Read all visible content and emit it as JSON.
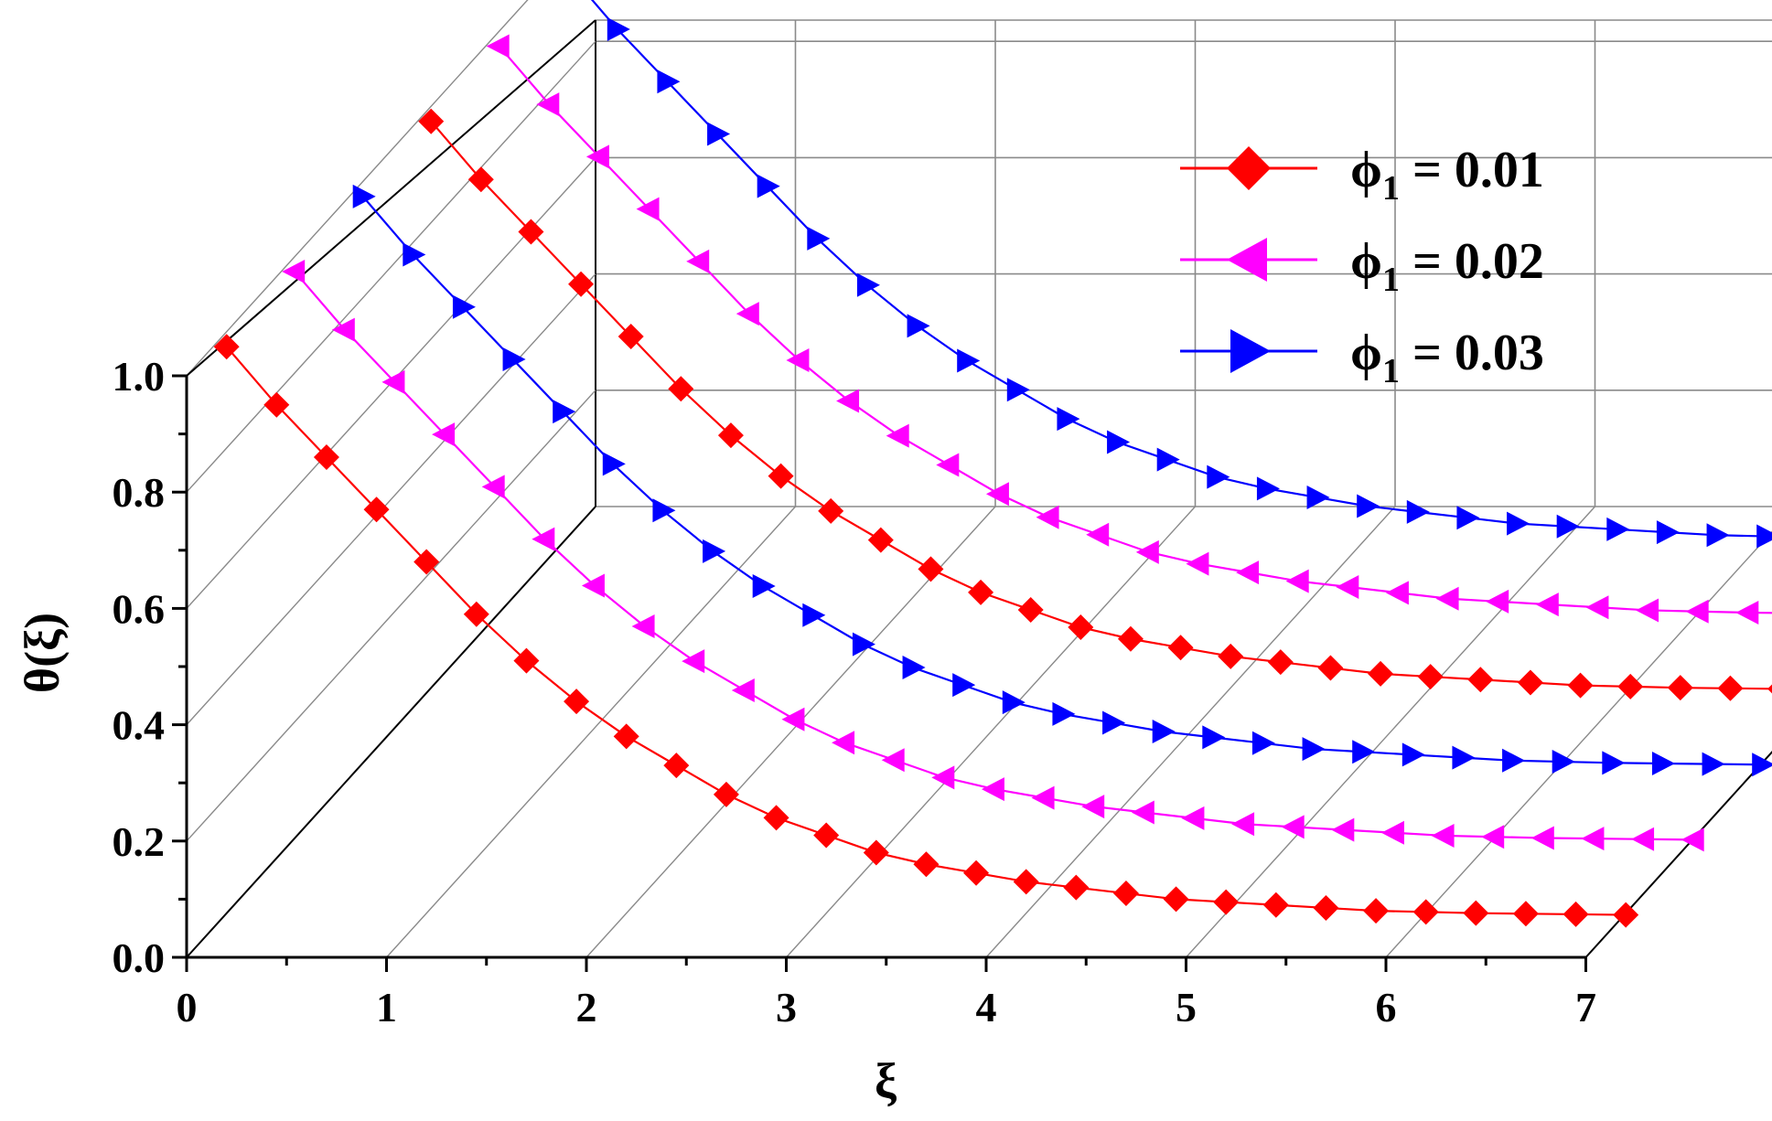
{
  "chart_data": {
    "type": "line",
    "style": "3d-waterfall",
    "xlabel": "ξ",
    "ylabel": "θ(ξ)",
    "xlim": [
      0,
      7
    ],
    "ylim": [
      0,
      1.0
    ],
    "x_ticks": [
      "0",
      "1",
      "2",
      "3",
      "4",
      "5",
      "6",
      "7"
    ],
    "y_ticks": [
      "0.0",
      "0.2",
      "0.4",
      "0.6",
      "0.8",
      "1.0"
    ],
    "grid": true,
    "legend_position": "top-right",
    "x": [
      0.0,
      0.25,
      0.5,
      0.75,
      1.0,
      1.25,
      1.5,
      1.75,
      2.0,
      2.25,
      2.5,
      2.75,
      3.0,
      3.25,
      3.5,
      3.75,
      4.0,
      4.25,
      4.5,
      4.75,
      5.0,
      5.25,
      5.5,
      5.75,
      6.0,
      6.25,
      6.5,
      6.75,
      7.0
    ],
    "series": [
      {
        "name": "ϕ₁ = 0.01",
        "label_main": "ϕ",
        "label_sub": "1",
        "label_rest": " = 0.01",
        "color": "#ff0000",
        "marker": "diamond",
        "depth": 0,
        "values": [
          1.05,
          0.95,
          0.86,
          0.77,
          0.68,
          0.59,
          0.51,
          0.44,
          0.38,
          0.33,
          0.28,
          0.24,
          0.21,
          0.18,
          0.16,
          0.145,
          0.13,
          0.12,
          0.11,
          0.1,
          0.095,
          0.09,
          0.085,
          0.08,
          0.078,
          0.076,
          0.075,
          0.074,
          0.073
        ]
      },
      {
        "name": "ϕ₁ = 0.02",
        "label_main": "ϕ",
        "label_sub": "1",
        "label_rest": " = 0.02",
        "color": "#ff00ff",
        "marker": "triangle-left",
        "depth": 1,
        "values": [
          1.05,
          0.95,
          0.86,
          0.77,
          0.68,
          0.59,
          0.51,
          0.44,
          0.38,
          0.33,
          0.28,
          0.24,
          0.21,
          0.18,
          0.16,
          0.145,
          0.13,
          0.12,
          0.11,
          0.1,
          0.095,
          0.09,
          0.085,
          0.08,
          0.078,
          0.076,
          0.075,
          0.074,
          0.073
        ]
      },
      {
        "name": "ϕ₁ = 0.03",
        "label_main": "ϕ",
        "label_sub": "1",
        "label_rest": " = 0.03",
        "color": "#0000ff",
        "marker": "triangle-right",
        "depth": 2,
        "values": [
          1.05,
          0.95,
          0.86,
          0.77,
          0.68,
          0.59,
          0.51,
          0.44,
          0.38,
          0.33,
          0.28,
          0.24,
          0.21,
          0.18,
          0.16,
          0.145,
          0.13,
          0.12,
          0.11,
          0.1,
          0.095,
          0.09,
          0.085,
          0.08,
          0.078,
          0.076,
          0.075,
          0.074,
          0.073
        ]
      }
    ]
  }
}
